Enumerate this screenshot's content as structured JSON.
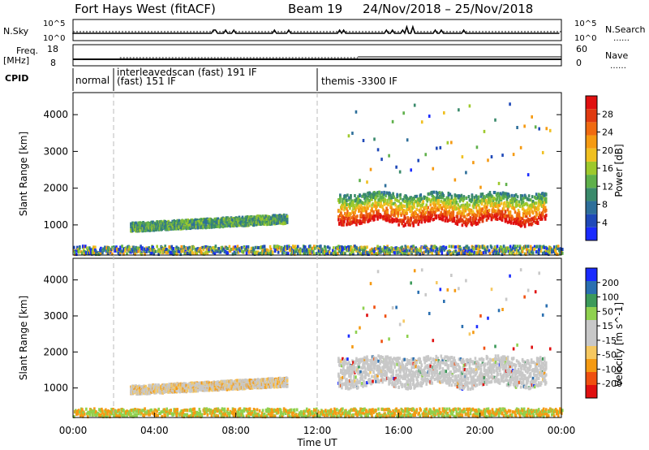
{
  "header": {
    "station": "Fort Hays West (fitACF)",
    "beam": "Beam 19",
    "dates": "24/Nov/2018 – 25/Nov/2018"
  },
  "strip_labels": {
    "nsky": "N.Sky",
    "nsky_ticks": [
      "10^5",
      "10^0"
    ],
    "nsearch": "N.Search",
    "nsearch_ticks": [
      "10^5",
      "10^0"
    ],
    "freq_line1": "Freq.",
    "freq_line2": "[MHz]",
    "freq_ticks": [
      "18",
      "8"
    ],
    "nave": "Nave",
    "nave_ticks": [
      "60",
      "0"
    ],
    "cpid": "CPID"
  },
  "cpid_segments": [
    {
      "label": "normal",
      "start_hour": 0.0
    },
    {
      "label": "interleavedscan (fast) 191 IF",
      "label2": "(fast) 151 IF",
      "start_hour": 2.0
    },
    {
      "label": "themis -3300 IF",
      "start_hour": 12.0
    }
  ],
  "colors": {
    "power": [
      "#1a2bff",
      "#1f49b8",
      "#2e6f9a",
      "#3a8a6b",
      "#5fb04a",
      "#9ec92c",
      "#f0c020",
      "#f59a12",
      "#f06a10",
      "#e03a10",
      "#e01010"
    ],
    "velocity": [
      "#e01010",
      "#f05010",
      "#f59a12",
      "#f6c860",
      "#c8c8c8",
      "#c8c8c8",
      "#8fd14f",
      "#3c9a5a",
      "#2a6fb0",
      "#1a2bff"
    ],
    "sky_line": "#000000"
  },
  "chart_data": [
    {
      "type": "heatmap",
      "name": "power",
      "ylabel": "Slant Range [km]",
      "xlabel": "Time UT",
      "xlim": [
        0,
        24
      ],
      "ylim": [
        180,
        4600
      ],
      "yticks": [
        1000,
        2000,
        3000,
        4000
      ],
      "xtick_labels": [
        "00:00",
        "04:00",
        "08:00",
        "12:00",
        "16:00",
        "20:00",
        "00:00"
      ],
      "colorbar_label": "Power [dB]",
      "colorbar_ticks": [
        "4",
        "8",
        "12",
        "16",
        "20",
        "24",
        "28"
      ],
      "colorbar_range": [
        0,
        30
      ],
      "features": [
        {
          "kind": "band",
          "t": [
            2.8,
            10.5
          ],
          "r": [
            820,
            1050
          ],
          "level": "mid"
        },
        {
          "kind": "band",
          "t": [
            13.0,
            23.2
          ],
          "r": [
            1050,
            1850
          ],
          "level": "high"
        },
        {
          "kind": "ground",
          "t": [
            0,
            24
          ],
          "r": [
            200,
            420
          ],
          "level": "low"
        },
        {
          "kind": "sparse",
          "t": [
            13.5,
            23.5
          ],
          "r": [
            2000,
            4300
          ],
          "level": "low"
        }
      ]
    },
    {
      "type": "heatmap",
      "name": "velocity",
      "ylabel": "Slant Range [km]",
      "xlabel": "Time UT",
      "xlim": [
        0,
        24
      ],
      "ylim": [
        180,
        4600
      ],
      "yticks": [
        1000,
        2000,
        3000,
        4000
      ],
      "xtick_labels": [
        "00:00",
        "04:00",
        "08:00",
        "12:00",
        "16:00",
        "20:00",
        "00:00"
      ],
      "colorbar_label": "Velocity [m s^-1]",
      "colorbar_ticks": [
        "-200",
        "-100",
        "-50",
        "-15",
        "15",
        "50",
        "100",
        "200"
      ],
      "features": [
        {
          "kind": "band",
          "t": [
            2.8,
            10.5
          ],
          "r": [
            820,
            1050
          ],
          "level": "slow"
        },
        {
          "kind": "band",
          "t": [
            13.0,
            23.2
          ],
          "r": [
            1050,
            1850
          ],
          "level": "ground"
        },
        {
          "kind": "ground",
          "t": [
            0,
            24
          ],
          "r": [
            200,
            420
          ],
          "level": "toward"
        },
        {
          "kind": "sparse",
          "t": [
            13.5,
            23.5
          ],
          "r": [
            2000,
            4300
          ],
          "level": "mixed"
        }
      ]
    }
  ]
}
